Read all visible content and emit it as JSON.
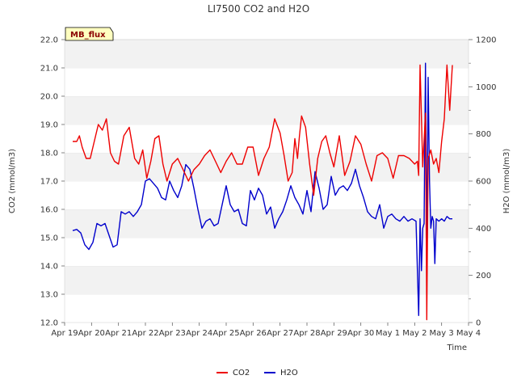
{
  "chart_data": {
    "type": "line",
    "title": "LI7500 CO2 and H2O",
    "badge": "MB_flux",
    "xlabel": "Time",
    "ylabel_left": "CO2 (mmol/m3)",
    "ylabel_right": "H2O (mmol/m3)",
    "xlim": [
      0,
      15
    ],
    "ylim_left": [
      12.0,
      22.0
    ],
    "ylim_right": [
      0,
      1200
    ],
    "x_tick_labels": [
      "Apr 19",
      "Apr 20",
      "Apr 21",
      "Apr 22",
      "Apr 23",
      "Apr 24",
      "Apr 25",
      "Apr 26",
      "Apr 27",
      "Apr 28",
      "Apr 29",
      "Apr 30",
      "May 1",
      "May 2",
      "May 3",
      "May 4"
    ],
    "y_left_ticks": [
      "12.0",
      "13.0",
      "14.0",
      "15.0",
      "16.0",
      "17.0",
      "18.0",
      "19.0",
      "20.0",
      "21.0",
      "22.0"
    ],
    "y_right_ticks": [
      "0",
      "200",
      "400",
      "600",
      "800",
      "1000",
      "1200"
    ],
    "colors": {
      "co2": "#ee0000",
      "h2o": "#0000cc",
      "band": "#f2f2f2",
      "badge_bg": "#ffffc0"
    },
    "series": [
      {
        "name": "CO2",
        "axis": "left",
        "x": [
          0.3,
          0.45,
          0.55,
          0.65,
          0.8,
          0.95,
          1.1,
          1.25,
          1.4,
          1.55,
          1.7,
          1.85,
          2.0,
          2.2,
          2.4,
          2.6,
          2.75,
          2.9,
          3.05,
          3.2,
          3.35,
          3.5,
          3.65,
          3.8,
          4.0,
          4.2,
          4.4,
          4.6,
          4.8,
          5.0,
          5.2,
          5.4,
          5.6,
          5.8,
          6.0,
          6.2,
          6.4,
          6.6,
          6.8,
          7.0,
          7.2,
          7.4,
          7.6,
          7.8,
          8.0,
          8.15,
          8.3,
          8.45,
          8.55,
          8.65,
          8.72,
          8.8,
          8.95,
          9.1,
          9.25,
          9.4,
          9.55,
          9.7,
          9.85,
          10.0,
          10.2,
          10.4,
          10.6,
          10.8,
          11.0,
          11.2,
          11.4,
          11.6,
          11.8,
          12.0,
          12.2,
          12.4,
          12.6,
          12.8,
          13.0,
          13.1,
          13.15,
          13.2,
          13.3,
          13.4,
          13.45,
          13.5,
          13.6,
          13.7,
          13.8,
          13.9,
          14.0,
          14.1,
          14.2,
          14.3,
          14.4
        ],
        "values": [
          18.4,
          18.4,
          18.6,
          18.2,
          17.8,
          17.8,
          18.4,
          19.0,
          18.8,
          19.2,
          18.0,
          17.7,
          17.6,
          18.6,
          18.9,
          17.8,
          17.6,
          18.1,
          17.1,
          17.7,
          18.5,
          18.6,
          17.6,
          17.0,
          17.6,
          17.8,
          17.4,
          17.0,
          17.4,
          17.6,
          17.9,
          18.1,
          17.7,
          17.3,
          17.7,
          18.0,
          17.6,
          17.6,
          18.2,
          18.2,
          17.2,
          17.8,
          18.2,
          19.2,
          18.7,
          17.9,
          17.0,
          17.3,
          18.5,
          17.8,
          18.6,
          19.3,
          18.9,
          17.6,
          16.5,
          17.8,
          18.4,
          18.6,
          18.0,
          17.5,
          18.6,
          17.2,
          17.7,
          18.6,
          18.3,
          17.6,
          17.0,
          17.9,
          18.0,
          17.8,
          17.1,
          17.9,
          17.9,
          17.8,
          17.6,
          17.7,
          17.2,
          21.1,
          17.5,
          19.4,
          12.1,
          17.8,
          18.1,
          17.6,
          17.8,
          17.3,
          18.4,
          19.2,
          21.1,
          19.5,
          21.1
        ]
      },
      {
        "name": "H2O",
        "axis": "right",
        "x": [
          0.3,
          0.45,
          0.6,
          0.75,
          0.9,
          1.05,
          1.2,
          1.35,
          1.5,
          1.65,
          1.8,
          1.95,
          2.1,
          2.25,
          2.4,
          2.55,
          2.7,
          2.85,
          3.0,
          3.15,
          3.3,
          3.45,
          3.6,
          3.75,
          3.9,
          4.05,
          4.2,
          4.35,
          4.5,
          4.65,
          4.8,
          4.95,
          5.1,
          5.25,
          5.4,
          5.55,
          5.7,
          5.85,
          6.0,
          6.15,
          6.3,
          6.45,
          6.6,
          6.75,
          6.9,
          7.05,
          7.2,
          7.35,
          7.5,
          7.65,
          7.8,
          7.95,
          8.1,
          8.25,
          8.4,
          8.55,
          8.7,
          8.85,
          9.0,
          9.15,
          9.3,
          9.45,
          9.6,
          9.75,
          9.9,
          10.05,
          10.2,
          10.35,
          10.5,
          10.65,
          10.8,
          10.95,
          11.1,
          11.25,
          11.4,
          11.55,
          11.7,
          11.85,
          12.0,
          12.15,
          12.3,
          12.45,
          12.6,
          12.75,
          12.9,
          13.05,
          13.15,
          13.2,
          13.25,
          13.3,
          13.35,
          13.4,
          13.45,
          13.5,
          13.55,
          13.6,
          13.65,
          13.7,
          13.75,
          13.8,
          13.9,
          14.0,
          14.1,
          14.2,
          14.3,
          14.4
        ],
        "values": [
          390,
          395,
          380,
          330,
          310,
          340,
          420,
          410,
          420,
          370,
          320,
          330,
          470,
          460,
          470,
          450,
          470,
          500,
          600,
          610,
          590,
          570,
          530,
          520,
          600,
          560,
          530,
          580,
          670,
          650,
          570,
          480,
          400,
          430,
          440,
          410,
          420,
          500,
          580,
          500,
          470,
          480,
          420,
          410,
          560,
          520,
          570,
          540,
          460,
          490,
          400,
          440,
          470,
          520,
          580,
          530,
          500,
          460,
          560,
          470,
          640,
          570,
          480,
          500,
          620,
          540,
          570,
          580,
          560,
          590,
          650,
          580,
          530,
          470,
          450,
          440,
          500,
          400,
          450,
          460,
          440,
          430,
          450,
          430,
          440,
          430,
          30,
          440,
          220,
          400,
          420,
          1100,
          250,
          1040,
          600,
          400,
          450,
          430,
          250,
          440,
          430,
          440,
          430,
          450,
          440,
          440
        ]
      }
    ]
  }
}
